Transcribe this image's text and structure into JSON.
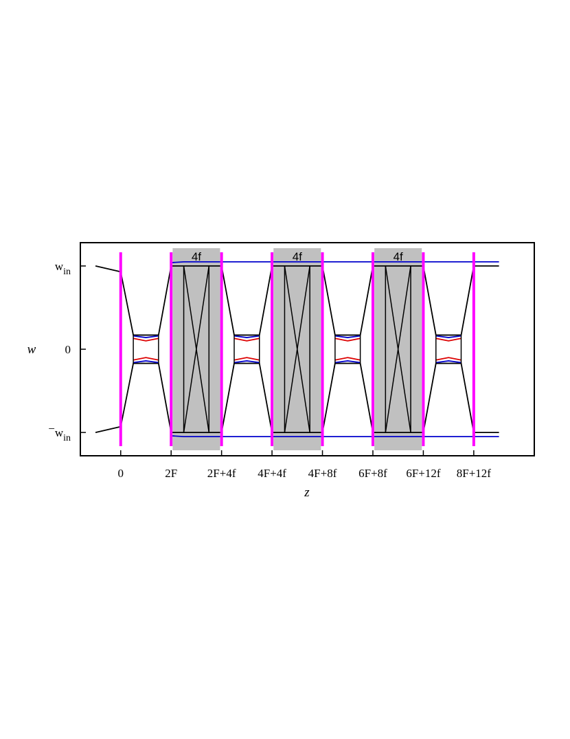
{
  "chart_data": {
    "type": "line",
    "xlabel": "z",
    "ylabel": "w",
    "xlim": [
      -0.8,
      8.2
    ],
    "ylim": [
      -1.28,
      1.28
    ],
    "x_ticks": [
      {
        "x": 0,
        "label": "0"
      },
      {
        "x": 1,
        "label": "2F"
      },
      {
        "x": 2,
        "label": "2F+4f"
      },
      {
        "x": 3,
        "label": "4F+4f"
      },
      {
        "x": 4,
        "label": "4F+8f"
      },
      {
        "x": 5,
        "label": "6F+8f"
      },
      {
        "x": 6,
        "label": "6F+12f"
      },
      {
        "x": 7,
        "label": "8F+12f"
      }
    ],
    "y_ticks": [
      {
        "y": 1,
        "label": "w",
        "sub": "in",
        "prefix": ""
      },
      {
        "y": 0,
        "label": "0",
        "sub": "",
        "prefix": ""
      },
      {
        "y": -1,
        "label": "w",
        "sub": "in",
        "prefix": "−"
      }
    ],
    "shaded_regions": [
      {
        "x0": 1.03,
        "x1": 1.97,
        "label": "4f"
      },
      {
        "x0": 3.03,
        "x1": 3.97,
        "label": "4f"
      },
      {
        "x0": 5.03,
        "x1": 5.97,
        "label": "4f"
      }
    ],
    "element_positions": [
      0,
      1,
      2,
      3,
      4,
      5,
      6,
      7
    ],
    "colors": {
      "element": "#ff00ff",
      "shade": "#c0c0c0",
      "black": "#000000",
      "red": "#dd0000",
      "blue": "#0000cc"
    },
    "series": [
      {
        "color": "black",
        "x": [
          -0.5,
          0,
          0.25,
          0.75,
          1,
          1.25,
          1.75,
          2,
          2.25,
          2.75,
          3,
          3.25,
          3.75,
          4,
          4.25,
          4.75,
          5,
          5.25,
          5.75,
          6,
          6.25,
          6.75,
          7,
          7.5
        ],
        "y": [
          1,
          0.93,
          0.17,
          0.17,
          1,
          1,
          1,
          1,
          0.17,
          0.17,
          1,
          1,
          1,
          1,
          0.17,
          0.17,
          1,
          1,
          1,
          1,
          0.17,
          0.17,
          1,
          1
        ]
      },
      {
        "color": "red",
        "x": [
          0.25,
          0.5,
          0.75
        ],
        "y": [
          0.13,
          0.1,
          0.13
        ],
        "repeat_at": [
          0,
          2,
          4,
          6
        ]
      },
      {
        "color": "blue",
        "x": [
          0.25,
          0.5,
          0.75
        ],
        "y": [
          0.16,
          0.14,
          0.16
        ],
        "repeat_at": [
          0,
          2,
          4,
          6
        ]
      },
      {
        "color": "blue",
        "x": [
          1,
          1.25,
          1.75,
          2,
          7,
          7.5
        ],
        "y": [
          1.04,
          1.05,
          1.05,
          1.05,
          1.05,
          1.05
        ]
      }
    ]
  }
}
